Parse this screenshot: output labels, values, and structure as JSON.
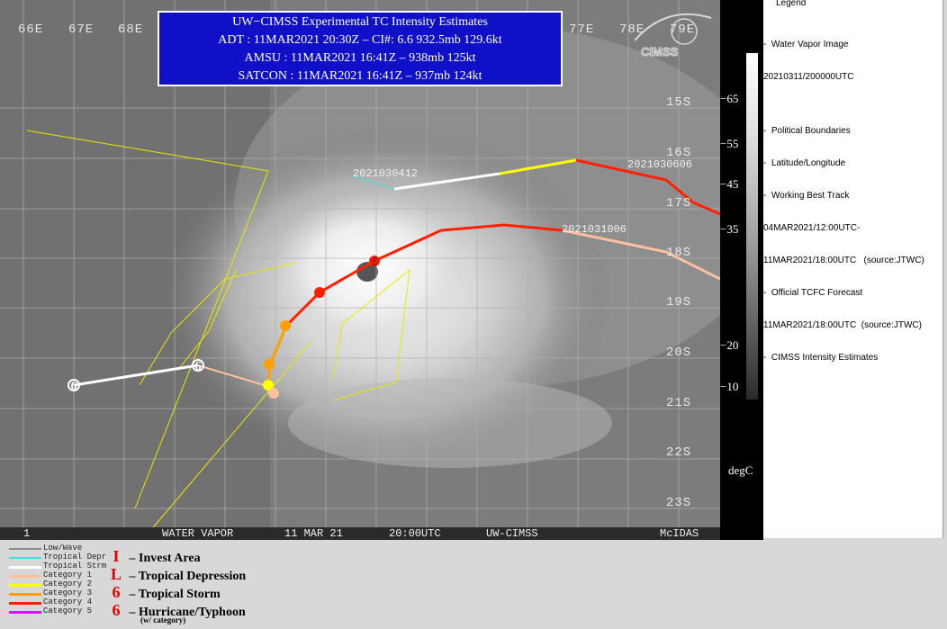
{
  "map": {
    "longitudes": [
      "66E",
      "67E",
      "68E",
      "77E",
      "78E",
      "79E"
    ],
    "latitudes": [
      "15S",
      "16S",
      "17S",
      "18S",
      "19S",
      "20S",
      "21S",
      "22S",
      "23S"
    ],
    "track_labels": [
      "2021030412",
      "2021030606",
      "2021031006"
    ],
    "storm_symbols": [
      "6",
      "6",
      "3",
      "3",
      "2",
      "1",
      "6",
      "6"
    ]
  },
  "infobox": {
    "title": "UW−CIMSS Experimental TC Intensity Estimates",
    "adt": "ADT : 11MAR2021 20:30Z –  CI#: 6.6   932.5mb   129.6kt",
    "amsu": "AMSU : 11MAR2021 16:41Z –  938mb   125kt",
    "satcon": "SATCON : 11MAR2021 16:41Z –  937mb   124kt"
  },
  "footer": {
    "frame": "1",
    "channel": "WATER VAPOR",
    "date": "11 MAR 21",
    "time": "20:00UTC",
    "source": "UW-CIMSS",
    "software": "McIDAS"
  },
  "logo": {
    "text": "CIMSS"
  },
  "scale": {
    "ticks": [
      "−65",
      "−55",
      "−45",
      "−35",
      "−20",
      "−10"
    ],
    "unit": "degC"
  },
  "right_panel": {
    "legend_title": "Legend",
    "lines": [
      "-  Water Vapor Image",
      "20210311/200000UTC",
      "",
      "-  Political Boundaries",
      "-  Latitude/Longitude",
      "-  Working Best Track",
      "04MAR2021/12:00UTC-",
      "11MAR2021/18:00UTC   (source:JTWC)",
      "-  Official TCFC Forecast",
      "11MAR2021/18:00UTC  (source:JTWC)",
      "-  CIMSS Intensity Estimates"
    ]
  },
  "legend": {
    "track_types": [
      {
        "label": "Low/Wave",
        "color": "#8c8c8c"
      },
      {
        "label": "Tropical Depr",
        "color": "#40e0e0"
      },
      {
        "label": "Tropical Strm",
        "color": "#ffffff"
      },
      {
        "label": "Category 1",
        "color": "#ffc0a0"
      },
      {
        "label": "Category 2",
        "color": "#ffff00"
      },
      {
        "label": "Category 3",
        "color": "#ffa000"
      },
      {
        "label": "Category 4",
        "color": "#ff2000"
      },
      {
        "label": "Category 5",
        "color": "#ff00ff"
      }
    ],
    "symbols": [
      {
        "glyph": "I",
        "label": "– Invest Area"
      },
      {
        "glyph": "L",
        "label": "– Tropical Depression"
      },
      {
        "glyph": "6",
        "label": "– Tropical Storm"
      },
      {
        "glyph": "6",
        "label": "– Hurricane/Typhoon"
      }
    ],
    "symbol_note": "(w/ category)"
  },
  "colors": {
    "info_bg": "#1010c8",
    "cat4": "#ff2000",
    "cat3": "#ffa000",
    "cat2": "#ffff00",
    "cat1": "#ffc0a0",
    "tropical_storm": "#ffffff",
    "forecast_cone": "#e8e800"
  }
}
